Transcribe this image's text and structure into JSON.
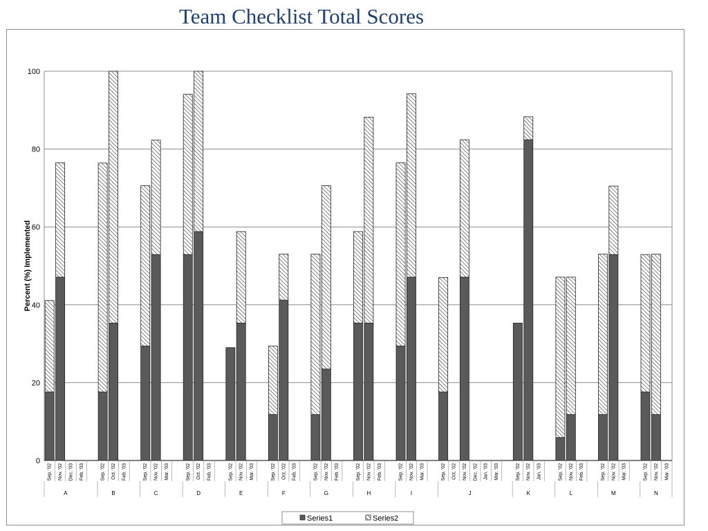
{
  "slide": {
    "title": "Team Checklist Total Scores"
  },
  "chart_data": {
    "type": "bar",
    "stacked": true,
    "title": "Team Checklist Total Scores",
    "xlabel": "",
    "ylabel": "Percent (%) Implemented",
    "ylim": [
      0,
      100
    ],
    "yticks": [
      0,
      20,
      40,
      60,
      80,
      100
    ],
    "grid": true,
    "legend": "bottom",
    "groups": [
      {
        "name": "A",
        "categories": [
          "Sep. '02",
          "Nov. '02",
          "Dec. '03",
          "Feb. '03"
        ],
        "s1": [
          17.6,
          47.1,
          0,
          0
        ],
        "s2": [
          23.5,
          29.4,
          0,
          0
        ]
      },
      {
        "name": "B",
        "categories": [
          "Sep. '02",
          "Oct. '02",
          "Feb. '03"
        ],
        "s1": [
          17.6,
          35.3,
          0
        ],
        "s2": [
          58.8,
          64.7,
          0
        ]
      },
      {
        "name": "C",
        "categories": [
          "Sep. '02",
          "Nov. '02",
          "Mar. '03"
        ],
        "s1": [
          29.4,
          52.9,
          0
        ],
        "s2": [
          41.2,
          29.4,
          0
        ]
      },
      {
        "name": "D",
        "categories": [
          "Sep. '02",
          "Oct. '02",
          "Feb. '03"
        ],
        "s1": [
          52.9,
          58.8,
          0
        ],
        "s2": [
          41.2,
          41.2,
          0
        ]
      },
      {
        "name": "E",
        "categories": [
          "Sep. '02",
          "Nov. '02",
          "Mar. '03"
        ],
        "s1": [
          29.0,
          35.3,
          0
        ],
        "s2": [
          0,
          23.5,
          0
        ]
      },
      {
        "name": "F",
        "categories": [
          "Sep. '02",
          "Oct. '02",
          "Feb. '03"
        ],
        "s1": [
          11.8,
          41.2,
          0
        ],
        "s2": [
          17.6,
          11.8,
          0
        ]
      },
      {
        "name": "G",
        "categories": [
          "Sep. '02",
          "Nov. '02",
          "Feb. '03"
        ],
        "s1": [
          11.8,
          23.5,
          0
        ],
        "s2": [
          41.2,
          47.1,
          0
        ]
      },
      {
        "name": "H",
        "categories": [
          "Sep. '02",
          "Nov. '02",
          "Feb. '03"
        ],
        "s1": [
          35.3,
          35.3,
          0
        ],
        "s2": [
          23.5,
          52.9,
          0
        ]
      },
      {
        "name": "I",
        "categories": [
          "Sep. '02",
          "Nov. '02",
          "Mar. '03"
        ],
        "s1": [
          29.4,
          47.1,
          0
        ],
        "s2": [
          47.1,
          47.1,
          0
        ]
      },
      {
        "name": "J",
        "categories": [
          "Sep. '02",
          "Oct. '02",
          "Nov. '02",
          "Dec. '02",
          "Jan. '03",
          "Mar. '03"
        ],
        "s1": [
          17.6,
          0,
          47.1,
          0,
          0,
          0
        ],
        "s2": [
          29.4,
          0,
          35.3,
          0,
          0,
          0
        ]
      },
      {
        "name": "K",
        "categories": [
          "Sep. '02",
          "Nov. '02",
          "Jan. '03"
        ],
        "s1": [
          35.3,
          82.4,
          0
        ],
        "s2": [
          0,
          5.9,
          0
        ]
      },
      {
        "name": "L",
        "categories": [
          "Sep. '02",
          "Nov. '02",
          "Feb. '03"
        ],
        "s1": [
          5.9,
          11.8,
          0
        ],
        "s2": [
          41.2,
          35.3,
          0
        ]
      },
      {
        "name": "M",
        "categories": [
          "Sep. '02",
          "Nov. '02",
          "Mar. '03"
        ],
        "s1": [
          11.8,
          52.9,
          0
        ],
        "s2": [
          41.2,
          17.6,
          0
        ]
      },
      {
        "name": "N",
        "categories": [
          "Sep. '02",
          "Nov. '02",
          "Mar. '03"
        ],
        "s1": [
          17.6,
          11.8,
          0
        ],
        "s2": [
          35.3,
          41.2,
          0
        ]
      }
    ],
    "series": [
      {
        "name": "Series1",
        "color": "#5a5a5a",
        "pattern": "solid"
      },
      {
        "name": "Series2",
        "color": "#ffffff",
        "pattern": "diagonal-hatch"
      }
    ]
  }
}
